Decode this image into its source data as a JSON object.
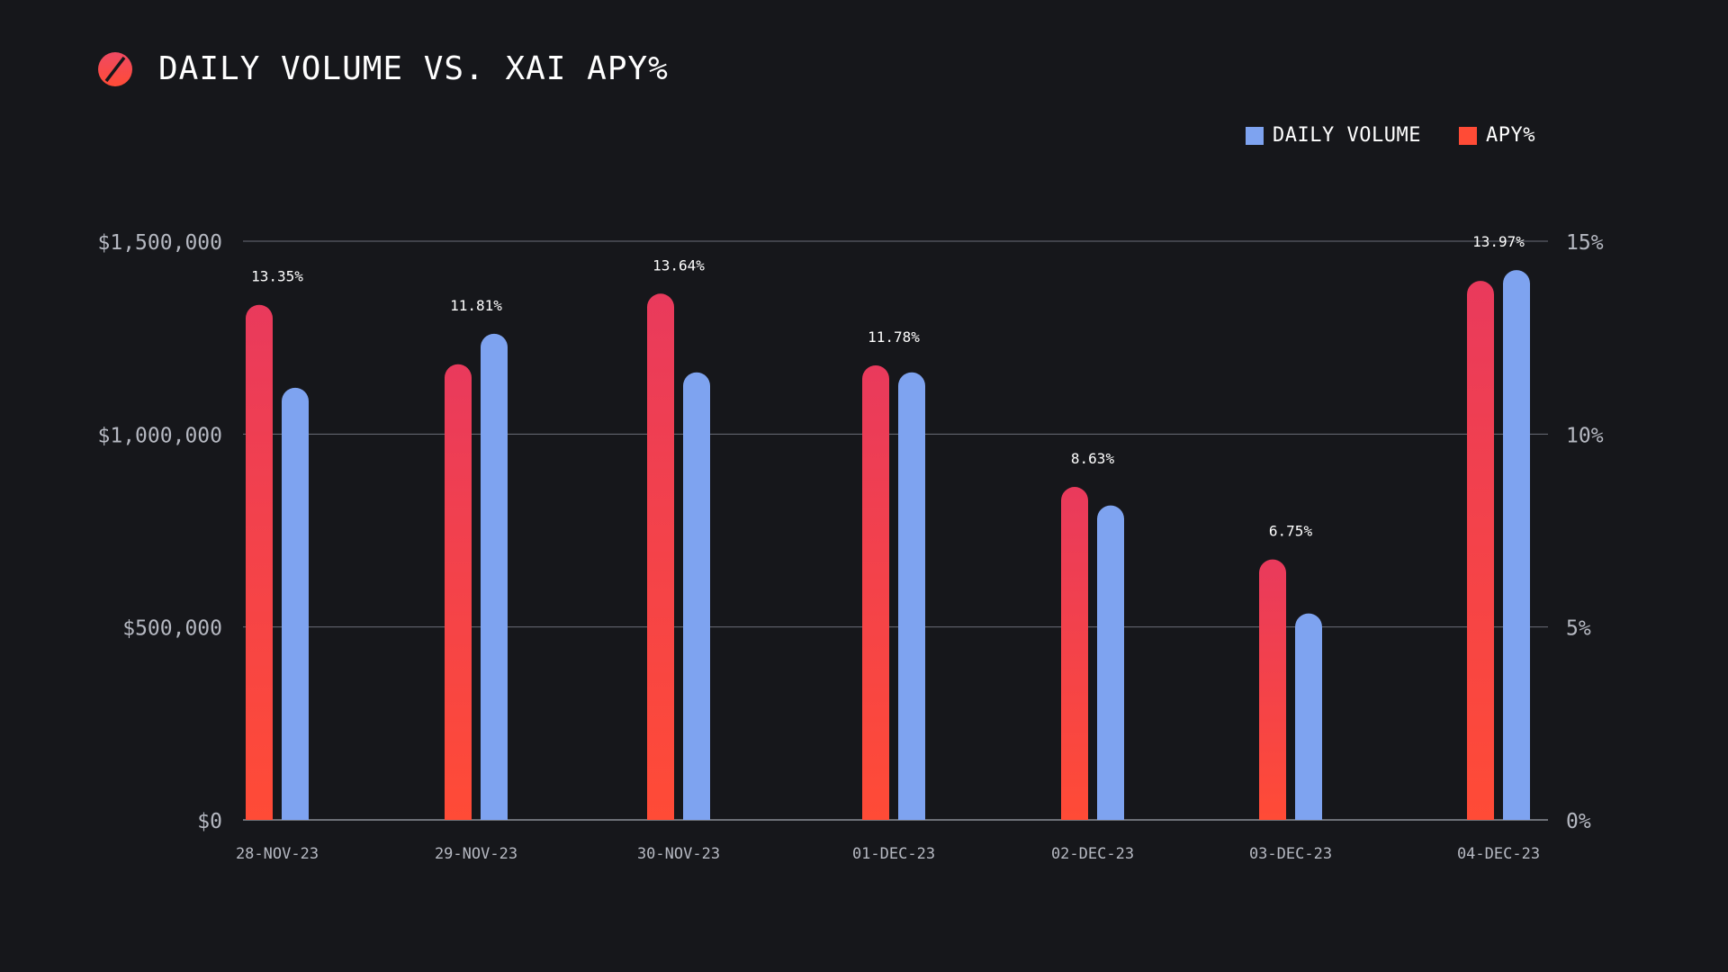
{
  "header": {
    "title": "DAILY VOLUME VS. XAI APY%",
    "logo_icon": "slashed-circle-logo-icon"
  },
  "colors": {
    "background": "#16171b",
    "volume": "#7ea3f0",
    "apy_top": "#e93a5c",
    "apy_bottom": "#ff4b36",
    "grid": "#6b6e78",
    "axis_text": "#b5b8c1",
    "label_text": "#ffffff"
  },
  "chart_data": {
    "type": "bar",
    "title": "DAILY VOLUME VS. XAI APY%",
    "categories": [
      "28-NOV-23",
      "29-NOV-23",
      "30-NOV-23",
      "01-DEC-23",
      "02-DEC-23",
      "03-DEC-23",
      "04-DEC-23"
    ],
    "series": [
      {
        "name": "APY%",
        "axis": "right",
        "values": [
          13.35,
          11.81,
          13.64,
          11.78,
          8.63,
          6.75,
          13.97
        ],
        "labels": [
          "13.35%",
          "11.81%",
          "13.64%",
          "11.78%",
          "8.63%",
          "6.75%",
          "13.97%"
        ]
      },
      {
        "name": "DAILY VOLUME",
        "axis": "left",
        "values": [
          1120000,
          1260000,
          1160000,
          1160000,
          815000,
          535000,
          1425000
        ]
      }
    ],
    "legend": [
      "DAILY VOLUME",
      "APY%"
    ],
    "legend_position": "top-right",
    "y_left": {
      "range": [
        0,
        1500000
      ],
      "ticks": [
        0,
        500000,
        1000000,
        1500000
      ],
      "tick_labels": [
        "$0",
        "$500,000",
        "$1,000,000",
        "$1,500,000"
      ]
    },
    "y_right": {
      "range": [
        0,
        15
      ],
      "ticks": [
        0,
        5,
        10,
        15
      ],
      "tick_labels": [
        "0%",
        "5%",
        "10%",
        "15%"
      ]
    },
    "grid": true,
    "xlabel": "",
    "ylabel": ""
  }
}
